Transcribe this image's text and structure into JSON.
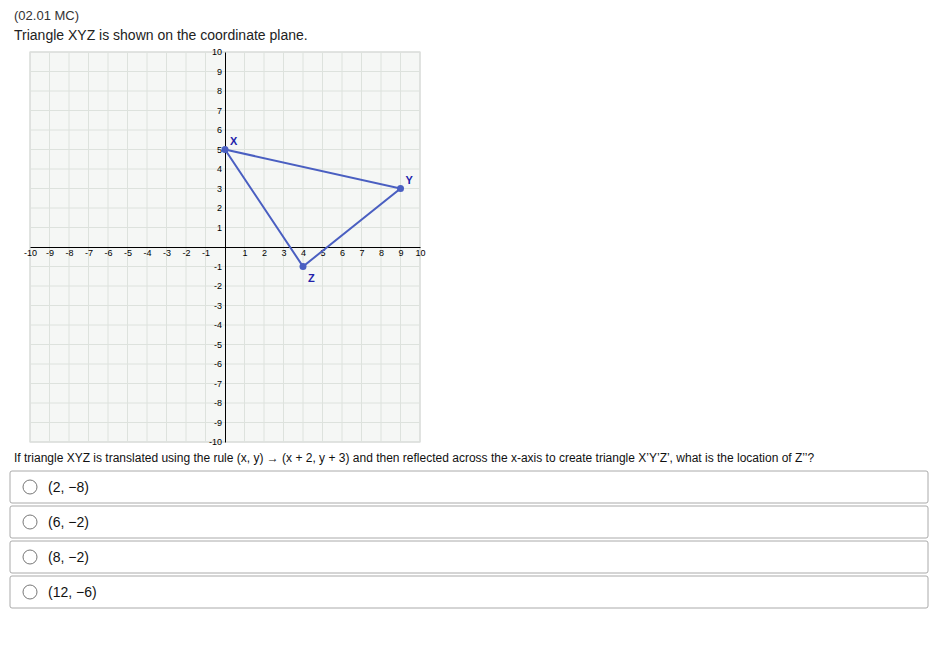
{
  "chart_data": {
    "type": "line",
    "title": "(02.01 MC)",
    "subtitle": "Triangle XYZ is shown on the coordinate plane.",
    "x": [
      0,
      9,
      4
    ],
    "values": [
      5,
      3,
      -1
    ],
    "labels": [
      "X",
      "Y",
      "Z"
    ],
    "color": "#4a5fc1",
    "marker": "circle",
    "xlim": [
      -10,
      10
    ],
    "ylim": [
      -10,
      10
    ],
    "xticks": [
      -10,
      -9,
      -8,
      -7,
      -6,
      -5,
      -4,
      -3,
      -2,
      -1,
      1,
      2,
      3,
      4,
      5,
      6,
      7,
      8,
      9,
      10
    ],
    "yticks": [
      -10,
      -9,
      -8,
      -7,
      -6,
      -5,
      -4,
      -3,
      -2,
      -1,
      1,
      2,
      3,
      4,
      5,
      6,
      7,
      8,
      9,
      10
    ],
    "grid": true,
    "question": "If triangle XYZ is translated using the rule (x, y) → (x + 2, y + 3) and then reflected across the x-axis to create triangle X’Y’Z’, what is the location of Z’’?",
    "choices": [
      "(2, −8)",
      "(6, −2)",
      "(8, −2)",
      "(12, −6)"
    ]
  }
}
